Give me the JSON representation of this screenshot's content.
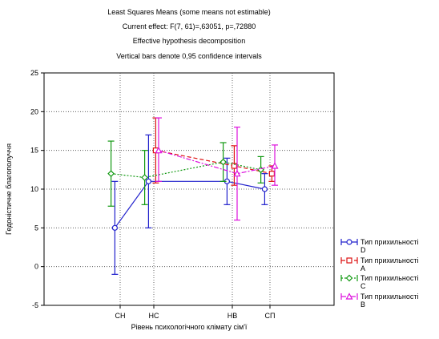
{
  "chart_data": {
    "type": "line",
    "title_lines": [
      "Least Squares Means (some means not estimable)",
      "Current effect: F(7, 61)=,63051, p=,72880",
      "Effective hypothesis decomposition",
      "Vertical bars denote 0,95 confidence intervals"
    ],
    "xlabel": "Рівень психологічного клімату сім'ї",
    "ylabel": "Гедоністичне благополуччя",
    "categories": [
      "СН",
      "НС",
      "НВ",
      "СП"
    ],
    "yticks": [
      -5,
      0,
      5,
      10,
      15,
      20,
      25
    ],
    "ylim": [
      -5,
      25
    ],
    "grid": true,
    "legend_position": "right",
    "series": [
      {
        "name": "Тип прихильності D",
        "color": "#2020cc",
        "marker": "circle",
        "dash": "solid",
        "offset": -0.22,
        "values": [
          5.0,
          11.0,
          11.0,
          10.0
        ],
        "lower": [
          -1.0,
          5.0,
          8.0,
          8.0
        ],
        "upper": [
          11.0,
          17.0,
          14.0,
          12.0
        ]
      },
      {
        "name": "Тип прихильності A",
        "color": "#dd1111",
        "marker": "square",
        "dash": "dashed",
        "offset": 0.08,
        "values": [
          null,
          15.0,
          13.0,
          12.0
        ],
        "lower": [
          null,
          10.8,
          10.5,
          11.0
        ],
        "upper": [
          null,
          19.2,
          15.6,
          13.0
        ]
      },
      {
        "name": "Тип прихильності C",
        "color": "#119911",
        "marker": "diamond",
        "dash": "dotted",
        "offset": -0.38,
        "values": [
          12.0,
          11.5,
          13.5,
          12.5
        ],
        "lower": [
          7.8,
          8.0,
          11.0,
          10.8
        ],
        "upper": [
          16.2,
          15.0,
          16.0,
          14.2
        ]
      },
      {
        "name": "Тип прихильності B",
        "color": "#dd11dd",
        "marker": "triangle",
        "dash": "dashdot",
        "offset": 0.2,
        "values": [
          null,
          15.0,
          12.0,
          13.0
        ],
        "lower": [
          null,
          11.0,
          6.0,
          10.5
        ],
        "upper": [
          null,
          19.2,
          18.0,
          15.7
        ]
      }
    ]
  }
}
